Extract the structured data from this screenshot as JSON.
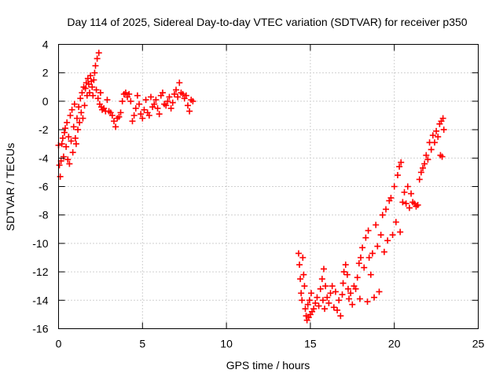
{
  "chart_data": {
    "type": "scatter",
    "title": "Day 114 of 2025, Sidereal Day-to-day VTEC variation (SDTVAR) for receiver p350",
    "xlabel": "GPS time / hours",
    "ylabel": "SDTVAR / TECUs",
    "xlim": [
      0,
      25
    ],
    "ylim": [
      -16,
      4
    ],
    "xticks": [
      0,
      5,
      10,
      15,
      20,
      25
    ],
    "yticks": [
      -16,
      -14,
      -12,
      -10,
      -8,
      -6,
      -4,
      -2,
      0,
      2,
      4
    ],
    "grid": true,
    "marker": "+",
    "series": [
      {
        "name": "SDTVAR",
        "color": "#ff0000",
        "points": [
          [
            0.0,
            -3.1
          ],
          [
            0.05,
            -4.5
          ],
          [
            0.1,
            -5.3
          ],
          [
            0.15,
            -4.2
          ],
          [
            0.2,
            -3.0
          ],
          [
            0.25,
            -2.6
          ],
          [
            0.3,
            -3.9
          ],
          [
            0.35,
            -2.2
          ],
          [
            0.4,
            -1.9
          ],
          [
            0.45,
            -3.2
          ],
          [
            0.5,
            -1.5
          ],
          [
            0.55,
            -4.1
          ],
          [
            0.6,
            -2.5
          ],
          [
            0.65,
            -4.4
          ],
          [
            0.7,
            -1.0
          ],
          [
            0.75,
            -2.8
          ],
          [
            0.8,
            -0.6
          ],
          [
            0.85,
            -3.6
          ],
          [
            0.9,
            -1.8
          ],
          [
            0.95,
            -0.2
          ],
          [
            1.0,
            -2.6
          ],
          [
            1.05,
            -3.0
          ],
          [
            1.1,
            -1.2
          ],
          [
            1.15,
            -2.0
          ],
          [
            1.2,
            -0.4
          ],
          [
            1.25,
            -1.5
          ],
          [
            1.3,
            0.2
          ],
          [
            1.35,
            -0.8
          ],
          [
            1.4,
            0.6
          ],
          [
            1.45,
            -1.2
          ],
          [
            1.5,
            1.0
          ],
          [
            1.55,
            -0.3
          ],
          [
            1.6,
            0.9
          ],
          [
            1.65,
            1.3
          ],
          [
            1.7,
            0.4
          ],
          [
            1.75,
            1.6
          ],
          [
            1.8,
            1.2
          ],
          [
            1.85,
            0.6
          ],
          [
            1.9,
            1.8
          ],
          [
            1.95,
            1.4
          ],
          [
            2.0,
            1.0
          ],
          [
            2.05,
            0.4
          ],
          [
            2.1,
            1.5
          ],
          [
            2.15,
            2.0
          ],
          [
            2.2,
            2.5
          ],
          [
            2.25,
            0.8
          ],
          [
            2.3,
            3.0
          ],
          [
            2.35,
            0.2
          ],
          [
            2.4,
            3.4
          ],
          [
            2.45,
            -0.2
          ],
          [
            2.5,
            0.6
          ],
          [
            2.55,
            -0.4
          ],
          [
            2.6,
            -0.6
          ],
          [
            2.7,
            -0.5
          ],
          [
            2.8,
            -0.7
          ],
          [
            2.9,
            0.1
          ],
          [
            3.0,
            -0.7
          ],
          [
            3.1,
            -0.8
          ],
          [
            3.2,
            -1.0
          ],
          [
            3.3,
            -1.4
          ],
          [
            3.4,
            -1.8
          ],
          [
            3.5,
            -1.2
          ],
          [
            3.6,
            -1.1
          ],
          [
            3.7,
            -0.8
          ],
          [
            3.8,
            0.0
          ],
          [
            3.9,
            0.5
          ],
          [
            4.0,
            0.6
          ],
          [
            4.1,
            0.3
          ],
          [
            4.2,
            0.5
          ],
          [
            4.3,
            0.0
          ],
          [
            4.4,
            -1.4
          ],
          [
            4.5,
            -1.0
          ],
          [
            4.6,
            -0.5
          ],
          [
            4.7,
            0.4
          ],
          [
            4.8,
            -0.2
          ],
          [
            4.9,
            -0.9
          ],
          [
            5.0,
            -1.2
          ],
          [
            5.1,
            -0.6
          ],
          [
            5.2,
            0.1
          ],
          [
            5.3,
            -0.8
          ],
          [
            5.4,
            -1.0
          ],
          [
            5.5,
            0.3
          ],
          [
            5.6,
            -0.4
          ],
          [
            5.7,
            -0.2
          ],
          [
            5.8,
            0.1
          ],
          [
            5.9,
            -0.5
          ],
          [
            6.0,
            -0.9
          ],
          [
            6.1,
            0.4
          ],
          [
            6.2,
            0.6
          ],
          [
            6.3,
            -0.2
          ],
          [
            6.4,
            -0.3
          ],
          [
            6.5,
            0.0
          ],
          [
            6.6,
            0.3
          ],
          [
            6.7,
            -0.5
          ],
          [
            6.8,
            -0.1
          ],
          [
            6.9,
            0.5
          ],
          [
            7.0,
            0.8
          ],
          [
            7.1,
            0.3
          ],
          [
            7.2,
            1.3
          ],
          [
            7.3,
            0.6
          ],
          [
            7.4,
            0.5
          ],
          [
            7.5,
            0.2
          ],
          [
            7.6,
            0.4
          ],
          [
            7.7,
            -0.3
          ],
          [
            7.8,
            -0.7
          ],
          [
            7.9,
            0.1
          ],
          [
            8.0,
            0.0
          ],
          [
            14.3,
            -10.7
          ],
          [
            14.35,
            -11.5
          ],
          [
            14.4,
            -12.5
          ],
          [
            14.45,
            -13.5
          ],
          [
            14.5,
            -14.0
          ],
          [
            14.55,
            -11.0
          ],
          [
            14.6,
            -12.2
          ],
          [
            14.65,
            -13.0
          ],
          [
            14.7,
            -14.6
          ],
          [
            14.75,
            -15.1
          ],
          [
            14.8,
            -15.4
          ],
          [
            14.85,
            -14.3
          ],
          [
            14.9,
            -15.2
          ],
          [
            14.95,
            -14.0
          ],
          [
            15.0,
            -15.0
          ],
          [
            15.05,
            -13.5
          ],
          [
            15.1,
            -14.8
          ],
          [
            15.2,
            -14.6
          ],
          [
            15.3,
            -14.2
          ],
          [
            15.4,
            -13.8
          ],
          [
            15.5,
            -14.4
          ],
          [
            15.6,
            -13.2
          ],
          [
            15.7,
            -12.5
          ],
          [
            15.75,
            -14.0
          ],
          [
            15.8,
            -11.8
          ],
          [
            15.85,
            -14.6
          ],
          [
            15.9,
            -13.0
          ],
          [
            16.0,
            -13.8
          ],
          [
            16.1,
            -14.2
          ],
          [
            16.2,
            -13.5
          ],
          [
            16.3,
            -13.0
          ],
          [
            16.4,
            -14.5
          ],
          [
            16.5,
            -13.4
          ],
          [
            16.6,
            -14.7
          ],
          [
            16.7,
            -14.0
          ],
          [
            16.8,
            -15.1
          ],
          [
            16.9,
            -13.6
          ],
          [
            16.95,
            -12.8
          ],
          [
            17.0,
            -12.0
          ],
          [
            17.1,
            -11.5
          ],
          [
            17.2,
            -12.2
          ],
          [
            17.25,
            -13.2
          ],
          [
            17.3,
            -13.9
          ],
          [
            17.4,
            -13.5
          ],
          [
            17.5,
            -14.3
          ],
          [
            17.6,
            -13.0
          ],
          [
            17.7,
            -13.2
          ],
          [
            17.8,
            -12.4
          ],
          [
            17.9,
            -11.4
          ],
          [
            17.95,
            -13.9
          ],
          [
            18.0,
            -11.0
          ],
          [
            18.1,
            -10.3
          ],
          [
            18.2,
            -11.7
          ],
          [
            18.3,
            -9.6
          ],
          [
            18.4,
            -14.1
          ],
          [
            18.45,
            -9.1
          ],
          [
            18.5,
            -11.0
          ],
          [
            18.6,
            -12.2
          ],
          [
            18.7,
            -10.7
          ],
          [
            18.8,
            -13.8
          ],
          [
            18.9,
            -8.7
          ],
          [
            19.0,
            -10.2
          ],
          [
            19.1,
            -13.4
          ],
          [
            19.2,
            -9.4
          ],
          [
            19.3,
            -8.0
          ],
          [
            19.4,
            -10.6
          ],
          [
            19.5,
            -7.6
          ],
          [
            19.6,
            -9.8
          ],
          [
            19.7,
            -7.0
          ],
          [
            19.8,
            -6.8
          ],
          [
            19.9,
            -9.4
          ],
          [
            20.0,
            -6.0
          ],
          [
            20.1,
            -8.5
          ],
          [
            20.2,
            -5.2
          ],
          [
            20.3,
            -4.6
          ],
          [
            20.35,
            -9.2
          ],
          [
            20.4,
            -4.3
          ],
          [
            20.5,
            -7.1
          ],
          [
            20.6,
            -6.4
          ],
          [
            20.7,
            -7.2
          ],
          [
            20.8,
            -6.0
          ],
          [
            20.9,
            -7.5
          ],
          [
            21.0,
            -6.5
          ],
          [
            21.1,
            -7.1
          ],
          [
            21.2,
            -7.2
          ],
          [
            21.3,
            -7.4
          ],
          [
            21.4,
            -7.3
          ],
          [
            21.5,
            -5.5
          ],
          [
            21.6,
            -5.0
          ],
          [
            21.7,
            -4.7
          ],
          [
            21.8,
            -4.4
          ],
          [
            21.9,
            -3.8
          ],
          [
            22.0,
            -4.1
          ],
          [
            22.1,
            -2.9
          ],
          [
            22.2,
            -3.4
          ],
          [
            22.3,
            -2.4
          ],
          [
            22.4,
            -2.9
          ],
          [
            22.5,
            -2.1
          ],
          [
            22.6,
            -2.5
          ],
          [
            22.7,
            -1.6
          ],
          [
            22.75,
            -3.8
          ],
          [
            22.8,
            -1.4
          ],
          [
            22.85,
            -3.9
          ],
          [
            22.9,
            -1.2
          ],
          [
            22.95,
            -2.0
          ]
        ]
      }
    ]
  }
}
